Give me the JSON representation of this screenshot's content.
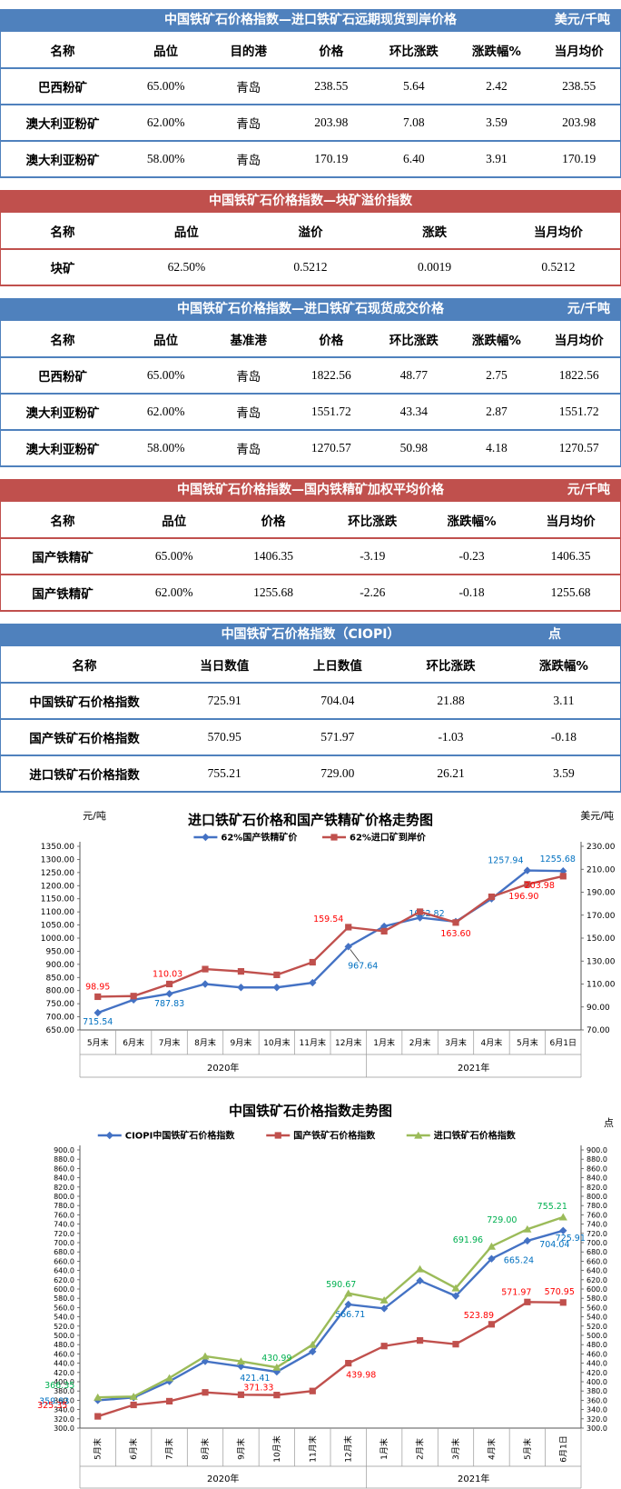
{
  "tables": [
    {
      "theme": "blue",
      "title": "中国铁矿石价格指数—进口铁矿石远期现货到岸价格",
      "unit": "美元/千吨",
      "columns": [
        "名称",
        "品位",
        "目的港",
        "价格",
        "环比涨跌",
        "涨跌幅%",
        "当月均价"
      ],
      "rows": [
        [
          "巴西粉矿",
          "65.00%",
          "青岛",
          "238.55",
          "5.64",
          "2.42",
          "238.55"
        ],
        [
          "澳大利亚粉矿",
          "62.00%",
          "青岛",
          "203.98",
          "7.08",
          "3.59",
          "203.98"
        ],
        [
          "澳大利亚粉矿",
          "58.00%",
          "青岛",
          "170.19",
          "6.40",
          "3.91",
          "170.19"
        ]
      ]
    },
    {
      "theme": "red",
      "title": "中国铁矿石价格指数—块矿溢价指数",
      "unit": "",
      "columns": [
        "名称",
        "品位",
        "溢价",
        "涨跌",
        "当月均价"
      ],
      "rows": [
        [
          "块矿",
          "62.50%",
          "0.5212",
          "0.0019",
          "0.5212"
        ]
      ]
    },
    {
      "theme": "blue",
      "title": "中国铁矿石价格指数—进口铁矿石现货成交价格",
      "unit": "元/千吨",
      "columns": [
        "名称",
        "品位",
        "基准港",
        "价格",
        "环比涨跌",
        "涨跌幅%",
        "当月均价"
      ],
      "rows": [
        [
          "巴西粉矿",
          "65.00%",
          "青岛",
          "1822.56",
          "48.77",
          "2.75",
          "1822.56"
        ],
        [
          "澳大利亚粉矿",
          "62.00%",
          "青岛",
          "1551.72",
          "43.34",
          "2.87",
          "1551.72"
        ],
        [
          "澳大利亚粉矿",
          "58.00%",
          "青岛",
          "1270.57",
          "50.98",
          "4.18",
          "1270.57"
        ]
      ]
    },
    {
      "theme": "red",
      "title": "中国铁矿石价格指数—国内铁精矿加权平均价格",
      "unit": "元/千吨",
      "columns": [
        "名称",
        "品位",
        "价格",
        "环比涨跌",
        "涨跌幅%",
        "当月均价"
      ],
      "rows": [
        [
          "国产铁精矿",
          "65.00%",
          "1406.35",
          "-3.19",
          "-0.23",
          "1406.35"
        ],
        [
          "国产铁精矿",
          "62.00%",
          "1255.68",
          "-2.26",
          "-0.18",
          "1255.68"
        ]
      ]
    },
    {
      "theme": "blue",
      "title": "中国铁矿石价格指数（CIOPI）",
      "unit": "点",
      "columns": [
        "名称",
        "当日数值",
        "上日数值",
        "环比涨跌",
        "涨跌幅%"
      ],
      "rows": [
        [
          "中国铁矿石价格指数",
          "725.91",
          "704.04",
          "21.88",
          "3.11"
        ],
        [
          "国产铁矿石价格指数",
          "570.95",
          "571.97",
          "-1.03",
          "-0.18"
        ],
        [
          "进口铁矿石价格指数",
          "755.21",
          "729.00",
          "26.21",
          "3.59"
        ]
      ]
    }
  ],
  "chart_data": [
    {
      "type": "line",
      "title": "进口铁矿石价格和国产铁精矿价格走势图",
      "unit_left": "元/吨",
      "unit_right": "美元/吨",
      "categories": [
        "5月末",
        "6月末",
        "7月末",
        "8月末",
        "9月末",
        "10月末",
        "11月末",
        "12月末",
        "1月末",
        "2月末",
        "3月末",
        "4月末",
        "5月末",
        "6月1日"
      ],
      "year_groups": [
        {
          "label": "2020年",
          "span": 8
        },
        {
          "label": "2021年",
          "span": 6
        }
      ],
      "left_axis": {
        "min": 650,
        "max": 1350,
        "step": 50,
        "decimals": 2
      },
      "right_axis": {
        "min": 70,
        "max": 230,
        "step": 20,
        "decimals": 2
      },
      "series": [
        {
          "name": "62%国产铁精矿价",
          "color": "#4472c4",
          "label_color": "#0070c0",
          "marker": "diamond",
          "axis": "left",
          "values": [
            715.54,
            765,
            787.83,
            825,
            812,
            812,
            830,
            967.64,
            1045,
            1078,
            1062.82,
            1150,
            1257.94,
            1255.68
          ],
          "labels": [
            {
              "i": 0,
              "t": "715.54",
              "dx": 0,
              "dy": 13
            },
            {
              "i": 2,
              "t": "787.83",
              "dx": 0,
              "dy": 14
            },
            {
              "i": 7,
              "t": "967.64",
              "dx": 16,
              "dy": 24,
              "leader": true
            },
            {
              "i": 10,
              "t": "1062.82",
              "dx": -32,
              "dy": -6
            },
            {
              "i": 12,
              "t": "1257.94",
              "dx": -24,
              "dy": -8
            },
            {
              "i": 13,
              "t": "1255.68",
              "dx": -6,
              "dy": -10
            }
          ]
        },
        {
          "name": "62%进口矿到岸价",
          "color": "#c0504d",
          "label_color": "#ff0000",
          "marker": "square",
          "axis": "right",
          "values": [
            98.95,
            99.5,
            110.03,
            123,
            121,
            118,
            129,
            159.54,
            156,
            173,
            163.6,
            186,
            196.9,
            203.98
          ],
          "labels": [
            {
              "i": 0,
              "t": "98.95",
              "dx": 0,
              "dy": -8
            },
            {
              "i": 2,
              "t": "110.03",
              "dx": -2,
              "dy": -8
            },
            {
              "i": 7,
              "t": "159.54",
              "dx": -22,
              "dy": -6
            },
            {
              "i": 10,
              "t": "163.60",
              "dx": 0,
              "dy": 15
            },
            {
              "i": 12,
              "t": "196.90",
              "dx": -4,
              "dy": 16
            },
            {
              "i": 13,
              "t": "203.98",
              "dx": -26,
              "dy": 13
            }
          ]
        }
      ]
    },
    {
      "type": "line",
      "title": "中国铁矿石价格指数走势图",
      "unit_left": "",
      "unit_right": "点",
      "categories": [
        "5月末",
        "6月末",
        "7月末",
        "8月末",
        "9月末",
        "10月末",
        "11月末",
        "12月末",
        "1月末",
        "2月末",
        "3月末",
        "4月末",
        "5月末",
        "6月1日"
      ],
      "year_groups": [
        {
          "label": "2020年",
          "span": 8
        },
        {
          "label": "2021年",
          "span": 6
        }
      ],
      "left_axis": {
        "min": 300,
        "max": 900,
        "step": 20,
        "decimals": 1
      },
      "right_axis": {
        "min": 300,
        "max": 900,
        "step": 20,
        "decimals": 1
      },
      "series": [
        {
          "name": "CIOPI中国铁矿石价格指数",
          "color": "#4472c4",
          "label_color": "#0070c0",
          "marker": "diamond",
          "axis": "left",
          "values": [
            359.83,
            366,
            401,
            444,
            433,
            421.41,
            465,
            566.71,
            558,
            618,
            585,
            665.24,
            704.04,
            725.91
          ],
          "labels": [
            {
              "i": 0,
              "t": "359.83",
              "dx": -48,
              "dy": 4
            },
            {
              "i": 5,
              "t": "421.41",
              "dx": -24,
              "dy": 10
            },
            {
              "i": 7,
              "t": "566.71",
              "dx": 2,
              "dy": 14
            },
            {
              "i": 11,
              "t": "665.24",
              "dx": 30,
              "dy": 5
            },
            {
              "i": 12,
              "t": "704.04",
              "dx": 30,
              "dy": 7
            },
            {
              "i": 13,
              "t": "725.91",
              "dx": 8,
              "dy": 11
            }
          ]
        },
        {
          "name": "国产铁矿石价格指数",
          "color": "#c0504d",
          "label_color": "#ff0000",
          "marker": "square",
          "axis": "left",
          "values": [
            325.35,
            350,
            358,
            377,
            372,
            371.33,
            380,
            439.98,
            477,
            489,
            481,
            523.89,
            571.97,
            570.95
          ],
          "labels": [
            {
              "i": 0,
              "t": "325.35",
              "dx": -50,
              "dy": -9
            },
            {
              "i": 5,
              "t": "371.33",
              "dx": -20,
              "dy": -5
            },
            {
              "i": 7,
              "t": "439.98",
              "dx": 14,
              "dy": 16
            },
            {
              "i": 11,
              "t": "523.89",
              "dx": -14,
              "dy": -7
            },
            {
              "i": 12,
              "t": "571.97",
              "dx": -12,
              "dy": -8
            },
            {
              "i": 13,
              "t": "570.95",
              "dx": -4,
              "dy": -9
            }
          ]
        },
        {
          "name": "进口铁矿石价格指数",
          "color": "#9bbb59",
          "label_color": "#00b050",
          "marker": "triangle",
          "axis": "left",
          "values": [
            366.35,
            368,
            408,
            455,
            444,
            430.99,
            480,
            590.67,
            576,
            643,
            602,
            691.96,
            729.0,
            755.21
          ],
          "labels": [
            {
              "i": 0,
              "t": "366.35",
              "dx": -42,
              "dy": -10
            },
            {
              "i": 5,
              "t": "430.99",
              "dx": 0,
              "dy": -7
            },
            {
              "i": 7,
              "t": "590.67",
              "dx": -8,
              "dy": -7
            },
            {
              "i": 11,
              "t": "691.96",
              "dx": -26,
              "dy": -4
            },
            {
              "i": 12,
              "t": "729.00",
              "dx": -28,
              "dy": -7
            },
            {
              "i": 13,
              "t": "755.21",
              "dx": -12,
              "dy": -9
            }
          ]
        }
      ]
    }
  ]
}
